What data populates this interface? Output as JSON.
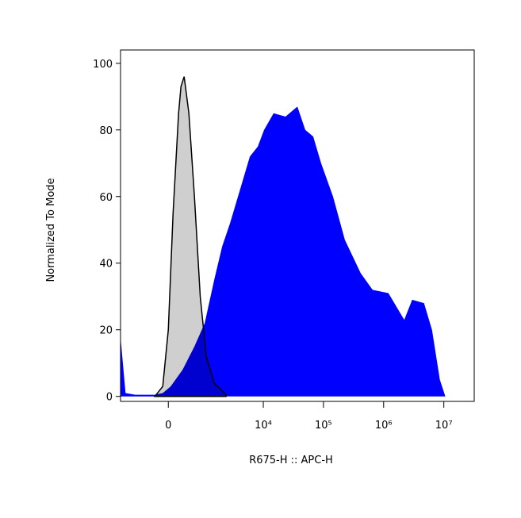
{
  "chart_data": {
    "type": "area",
    "xlabel": "R675-H :: APC-H",
    "ylabel": "Normalized To Mode",
    "xscale": "biexponential",
    "xlim": [
      -1600,
      32000000
    ],
    "ylim": [
      -1.5,
      104
    ],
    "xticks": [
      0,
      {
        "value": 10000,
        "label": "10⁴"
      },
      {
        "value": 100000,
        "label": "10⁵"
      },
      {
        "value": 1000000,
        "label": "10⁶"
      },
      {
        "value": 10000000,
        "label": "10⁷"
      }
    ],
    "yticks": [
      0,
      20,
      40,
      60,
      80,
      100
    ],
    "series": [
      {
        "color": "#0000ff",
        "x": [
          -1584,
          -1305,
          -867,
          -284,
          -113,
          48,
          303,
          620,
          998,
          1484,
          2038,
          2777,
          3780,
          5966,
          8094,
          10300,
          14840,
          23400,
          36850,
          49870,
          67560,
          91390,
          144100,
          226800,
          415600,
          655400,
          1200000,
          2200000,
          2980000,
          4690000,
          6360000,
          8600000,
          10600000
        ],
        "values": [
          17,
          1,
          0.5,
          0.5,
          1,
          3,
          8,
          15,
          22,
          35,
          45,
          52,
          60,
          72,
          75,
          80,
          85,
          84,
          87,
          80,
          78,
          70,
          60,
          47,
          37,
          32,
          31,
          23,
          29,
          28,
          20,
          5,
          0
        ]
      },
      {
        "color": "#cfcfcf",
        "edge": "#000000",
        "x": [
          -284,
          -113,
          0,
          97,
          213,
          266,
          340,
          460,
          620,
          818,
          1067,
          1484,
          2382
        ],
        "values": [
          0,
          3,
          20,
          55,
          85,
          93,
          96,
          85,
          60,
          30,
          12,
          4,
          0.5
        ]
      }
    ]
  }
}
